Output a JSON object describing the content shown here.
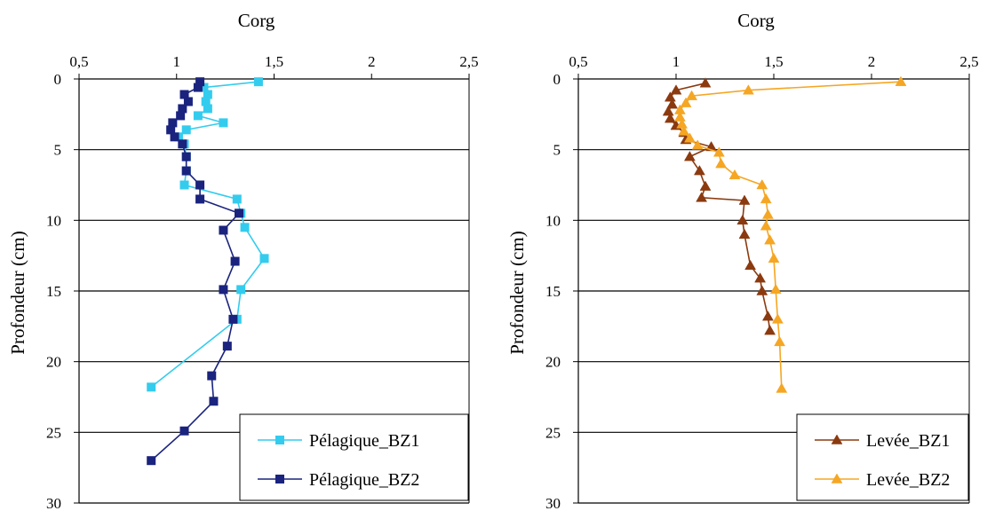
{
  "chart_data": [
    {
      "type": "line",
      "title": "",
      "xlabel": "Corg",
      "ylabel": "Profondeur (cm)",
      "x_axis_position": "top",
      "y_inverted": true,
      "xlim": [
        0.5,
        2.5
      ],
      "ylim": [
        0,
        30
      ],
      "x_ticks": [
        "0,5",
        "1",
        "1,5",
        "2",
        "2,5"
      ],
      "y_ticks": [
        "0",
        "5",
        "10",
        "15",
        "20",
        "25",
        "30"
      ],
      "grid": "horizontal",
      "legend_position": "bottom-right",
      "series": [
        {
          "name": "Pélagique_BZ1",
          "color": "#33ccee",
          "marker": "square",
          "points": [
            [
              1.42,
              0.2
            ],
            [
              1.14,
              0.6
            ],
            [
              1.16,
              1.1
            ],
            [
              1.15,
              1.6
            ],
            [
              1.16,
              2.1
            ],
            [
              1.11,
              2.6
            ],
            [
              1.24,
              3.1
            ],
            [
              1.05,
              3.6
            ],
            [
              1.01,
              4.1
            ],
            [
              1.04,
              4.6
            ],
            [
              1.05,
              5.5
            ],
            [
              1.05,
              6.5
            ],
            [
              1.04,
              7.5
            ],
            [
              1.31,
              8.5
            ],
            [
              1.33,
              9.5
            ],
            [
              1.35,
              10.5
            ],
            [
              1.45,
              12.7
            ],
            [
              1.33,
              14.9
            ],
            [
              1.31,
              17.0
            ],
            [
              0.87,
              21.8
            ]
          ]
        },
        {
          "name": "Pélagique_BZ2",
          "color": "#1a237e",
          "marker": "square",
          "points": [
            [
              1.12,
              0.2
            ],
            [
              1.11,
              0.6
            ],
            [
              1.04,
              1.1
            ],
            [
              1.06,
              1.6
            ],
            [
              1.03,
              2.1
            ],
            [
              1.02,
              2.6
            ],
            [
              0.98,
              3.1
            ],
            [
              0.97,
              3.6
            ],
            [
              0.99,
              4.1
            ],
            [
              1.03,
              4.6
            ],
            [
              1.05,
              5.5
            ],
            [
              1.05,
              6.5
            ],
            [
              1.12,
              7.5
            ],
            [
              1.12,
              8.5
            ],
            [
              1.32,
              9.5
            ],
            [
              1.24,
              10.7
            ],
            [
              1.3,
              12.9
            ],
            [
              1.24,
              14.9
            ],
            [
              1.29,
              17.0
            ],
            [
              1.26,
              18.9
            ],
            [
              1.18,
              21.0
            ],
            [
              1.19,
              22.8
            ],
            [
              1.04,
              24.9
            ],
            [
              0.87,
              27.0
            ]
          ]
        }
      ]
    },
    {
      "type": "line",
      "title": "",
      "xlabel": "Corg",
      "ylabel": "Profondeur (cm)",
      "x_axis_position": "top",
      "y_inverted": true,
      "xlim": [
        0.5,
        2.5
      ],
      "ylim": [
        0,
        30
      ],
      "x_ticks": [
        "0,5",
        "1",
        "1,5",
        "2",
        "2,5"
      ],
      "y_ticks": [
        "0",
        "5",
        "10",
        "15",
        "20",
        "25",
        "30"
      ],
      "grid": "horizontal",
      "legend_position": "bottom-right",
      "series": [
        {
          "name": "Levée_BZ1",
          "color": "#8b3a0f",
          "marker": "triangle",
          "points": [
            [
              1.15,
              0.3
            ],
            [
              1.0,
              0.8
            ],
            [
              0.97,
              1.3
            ],
            [
              0.98,
              1.8
            ],
            [
              0.96,
              2.3
            ],
            [
              0.97,
              2.8
            ],
            [
              1.0,
              3.3
            ],
            [
              1.04,
              3.8
            ],
            [
              1.05,
              4.3
            ],
            [
              1.18,
              4.8
            ],
            [
              1.07,
              5.5
            ],
            [
              1.12,
              6.5
            ],
            [
              1.15,
              7.6
            ],
            [
              1.13,
              8.4
            ],
            [
              1.35,
              8.6
            ],
            [
              1.34,
              10.0
            ],
            [
              1.35,
              11.0
            ],
            [
              1.38,
              13.2
            ],
            [
              1.43,
              14.1
            ],
            [
              1.44,
              15.0
            ],
            [
              1.47,
              16.8
            ],
            [
              1.48,
              17.8
            ]
          ]
        },
        {
          "name": "Levée_BZ2",
          "color": "#f5a623",
          "marker": "triangle",
          "points": [
            [
              2.15,
              0.2
            ],
            [
              1.37,
              0.8
            ],
            [
              1.08,
              1.2
            ],
            [
              1.05,
              1.7
            ],
            [
              1.02,
              2.2
            ],
            [
              1.02,
              2.7
            ],
            [
              1.03,
              3.2
            ],
            [
              1.04,
              3.7
            ],
            [
              1.07,
              4.2
            ],
            [
              1.11,
              4.7
            ],
            [
              1.22,
              5.2
            ],
            [
              1.23,
              6.0
            ],
            [
              1.3,
              6.8
            ],
            [
              1.44,
              7.5
            ],
            [
              1.46,
              8.5
            ],
            [
              1.47,
              9.6
            ],
            [
              1.46,
              10.4
            ],
            [
              1.48,
              11.4
            ],
            [
              1.5,
              12.7
            ],
            [
              1.51,
              14.9
            ],
            [
              1.52,
              17.0
            ],
            [
              1.53,
              18.6
            ],
            [
              1.54,
              21.9
            ]
          ]
        }
      ]
    }
  ]
}
